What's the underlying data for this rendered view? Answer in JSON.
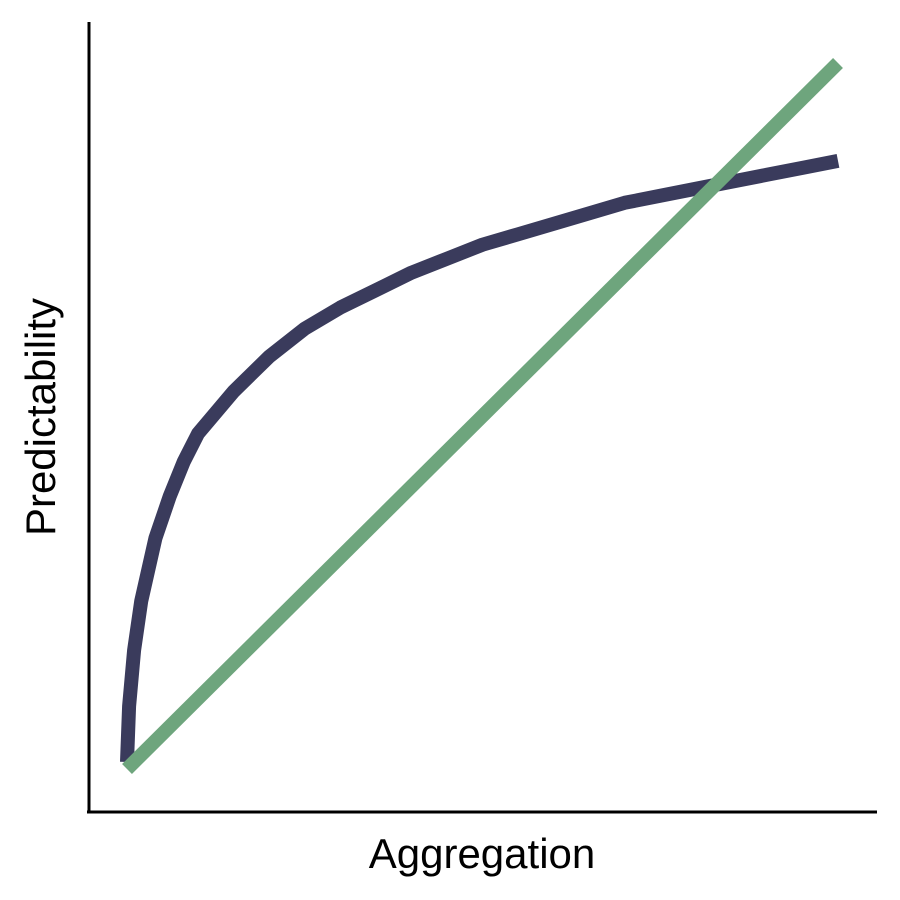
{
  "chart_data": {
    "type": "line",
    "title": "",
    "xlabel": "Aggregation",
    "ylabel": "Predictability",
    "xlim": [
      0,
      1
    ],
    "ylim": [
      0,
      1
    ],
    "grid": false,
    "legend": "none",
    "ticks": false,
    "series": [
      {
        "color": "#3a3b5c",
        "x": [
          0.0,
          0.003,
          0.01,
          0.02,
          0.04,
          0.06,
          0.08,
          0.1,
          0.15,
          0.2,
          0.25,
          0.3,
          0.35,
          0.4,
          0.45,
          0.5,
          0.55,
          0.6,
          0.65,
          0.7,
          0.75,
          0.8,
          0.85,
          0.9,
          0.95,
          1.0
        ],
        "y": [
          0.0,
          0.08,
          0.16,
          0.23,
          0.32,
          0.38,
          0.43,
          0.47,
          0.53,
          0.58,
          0.62,
          0.65,
          0.675,
          0.7,
          0.72,
          0.74,
          0.755,
          0.77,
          0.785,
          0.8,
          0.81,
          0.82,
          0.83,
          0.84,
          0.85,
          0.86
        ]
      },
      {
        "color": "#6ea57d",
        "x": [
          0.0,
          1.0
        ],
        "y": [
          -0.01,
          1.0
        ]
      }
    ]
  }
}
